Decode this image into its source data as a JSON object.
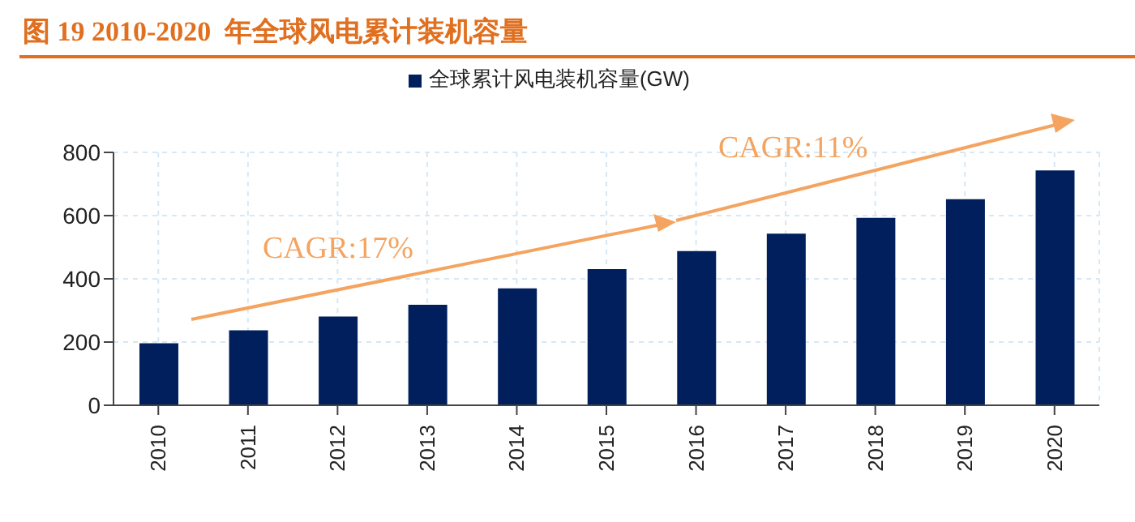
{
  "chart_data": {
    "type": "bar",
    "title": "图 19 2010-2020  年全球风电累计装机容量",
    "categories": [
      "2010",
      "2011",
      "2012",
      "2013",
      "2014",
      "2015",
      "2016",
      "2017",
      "2018",
      "2019",
      "2020"
    ],
    "series": [
      {
        "name": "全球累计风电装机容量(GW)",
        "color": "#001f5c",
        "values": [
          196,
          237,
          281,
          318,
          370,
          431,
          488,
          543,
          593,
          652,
          743
        ]
      }
    ],
    "ylim": [
      0,
      800
    ],
    "yticks": [
      0,
      200,
      400,
      600,
      800
    ],
    "grid": true,
    "legend": "top",
    "annotations": [
      "CAGR:17%",
      "CAGR:11%"
    ]
  }
}
